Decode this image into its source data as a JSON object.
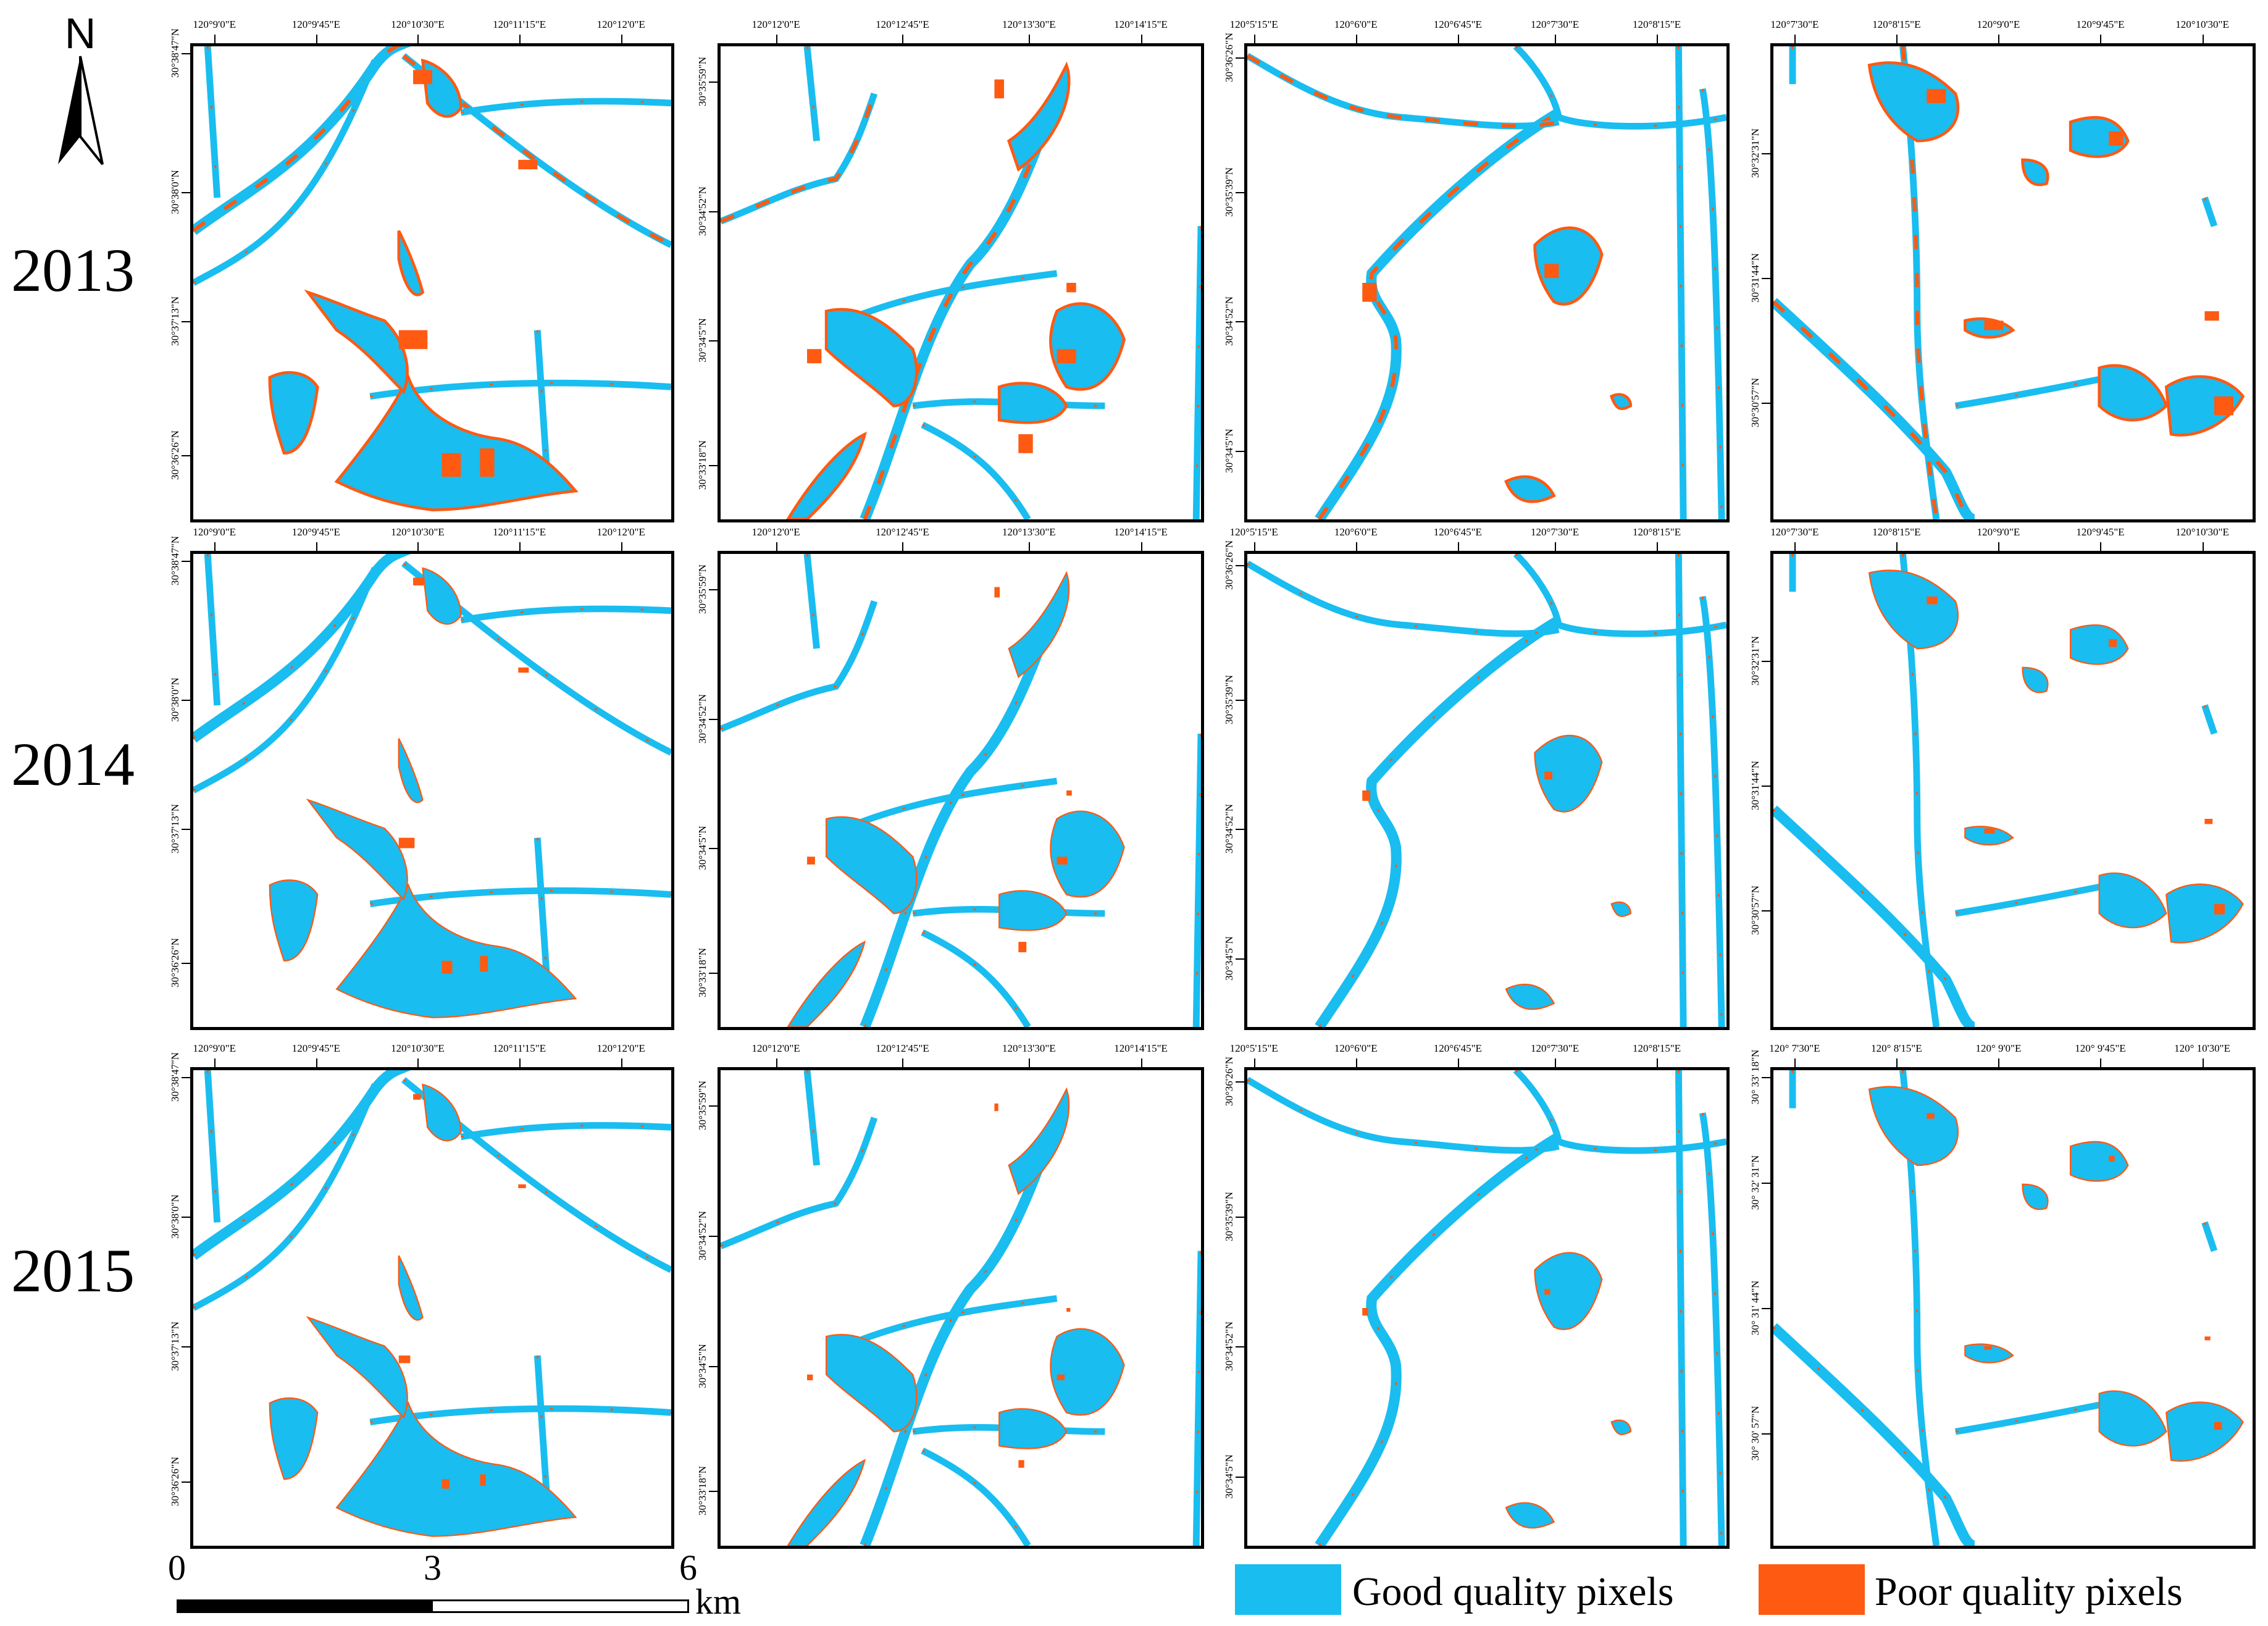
{
  "north": {
    "label": "N"
  },
  "years": [
    "2013",
    "2014",
    "2015"
  ],
  "colors": {
    "good": "#19bdf0",
    "poor": "#ff5a12"
  },
  "legend": [
    {
      "label": "Good quality pixels",
      "color": "#19bdf0"
    },
    {
      "label": "Poor quality pixels",
      "color": "#ff5a12"
    }
  ],
  "scale": {
    "ticks": [
      "0",
      "3",
      "6"
    ],
    "unit": "km"
  },
  "columns": [
    {
      "lon": [
        "120°9'0\"E",
        "120°9'45\"E",
        "120°10'30\"E",
        "120°11'15\"E",
        "120°12'0\"E"
      ],
      "lat": [
        "30°38'47\"N",
        "30°38'0\"N",
        "30°37'13\"N",
        "30°36'26\"N"
      ]
    },
    {
      "lon": [
        "120°12'0\"E",
        "120°12'45\"E",
        "120°13'30\"E",
        "120°14'15\"E"
      ],
      "lat": [
        "30°35'59\"N",
        "30°34'52\"N",
        "30°34'5\"N",
        "30°33'18\"N"
      ]
    },
    {
      "lon": [
        "120°5'15\"E",
        "120°6'0\"E",
        "120°6'45\"E",
        "120°7'30\"E",
        "120°8'15\"E"
      ],
      "lat": [
        "30°36'26\"N",
        "30°35'39\"N",
        "30°34'52\"N",
        "30°34'5\"N"
      ]
    },
    {
      "lon": [
        "120°7'30\"E",
        "120°8'15\"E",
        "120°9'0\"E",
        "120°9'45\"E",
        "120°10'30\"E"
      ],
      "lat": [
        "30°32'31\"N",
        "30°31'44\"N",
        "30°30'57\"N"
      ]
    }
  ],
  "panel_2015_col4": {
    "lon": [
      "120° 7'30\"E",
      "120° 8'15\"E",
      "120° 9'0\"E",
      "120° 9'45\"E",
      "120° 10'30\"E"
    ],
    "lat": [
      "30° 33' 18\"N",
      "30° 32' 31\"N",
      "30° 31' 44\"N",
      "30° 30' 57\"N"
    ]
  }
}
